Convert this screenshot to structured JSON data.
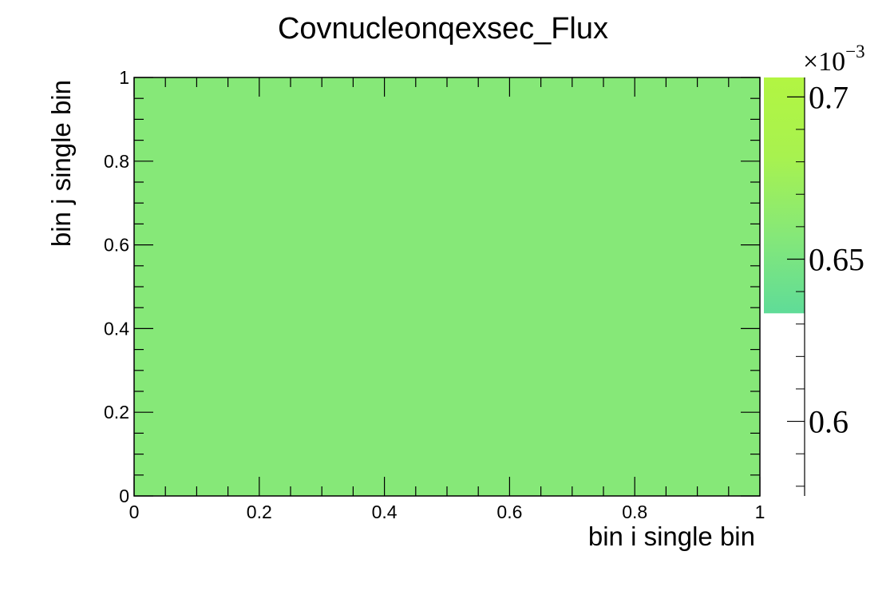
{
  "chart_data": {
    "type": "heatmap",
    "title": "Covnucleonqexsec_Flux",
    "xlabel": "bin i single bin",
    "ylabel": "bin j single bin",
    "xlim": [
      0,
      1
    ],
    "ylim": [
      0,
      1
    ],
    "x_ticks": [
      "0",
      "0.2",
      "0.4",
      "0.6",
      "0.8",
      "1"
    ],
    "y_ticks": [
      "0",
      "0.2",
      "0.4",
      "0.6",
      "0.8",
      "1"
    ],
    "cells": [
      {
        "x": [
          0,
          1
        ],
        "y": [
          0,
          1
        ],
        "value": 0.00064,
        "color": "#86e878"
      }
    ],
    "colorbar": {
      "multiplier": "×10",
      "exponent": "−3",
      "range": [
        0.577,
        0.706
      ],
      "fill_range": [
        0.6333,
        0.706
      ],
      "ticks": [
        {
          "value": 0.6,
          "label": "0.6"
        },
        {
          "value": 0.65,
          "label": "0.65"
        },
        {
          "value": 0.7,
          "label": "0.7"
        }
      ],
      "gradient": [
        "#5fdc98",
        "#86e878",
        "#a8f24f",
        "#b2f542"
      ]
    },
    "grid": false,
    "legend": "none"
  }
}
